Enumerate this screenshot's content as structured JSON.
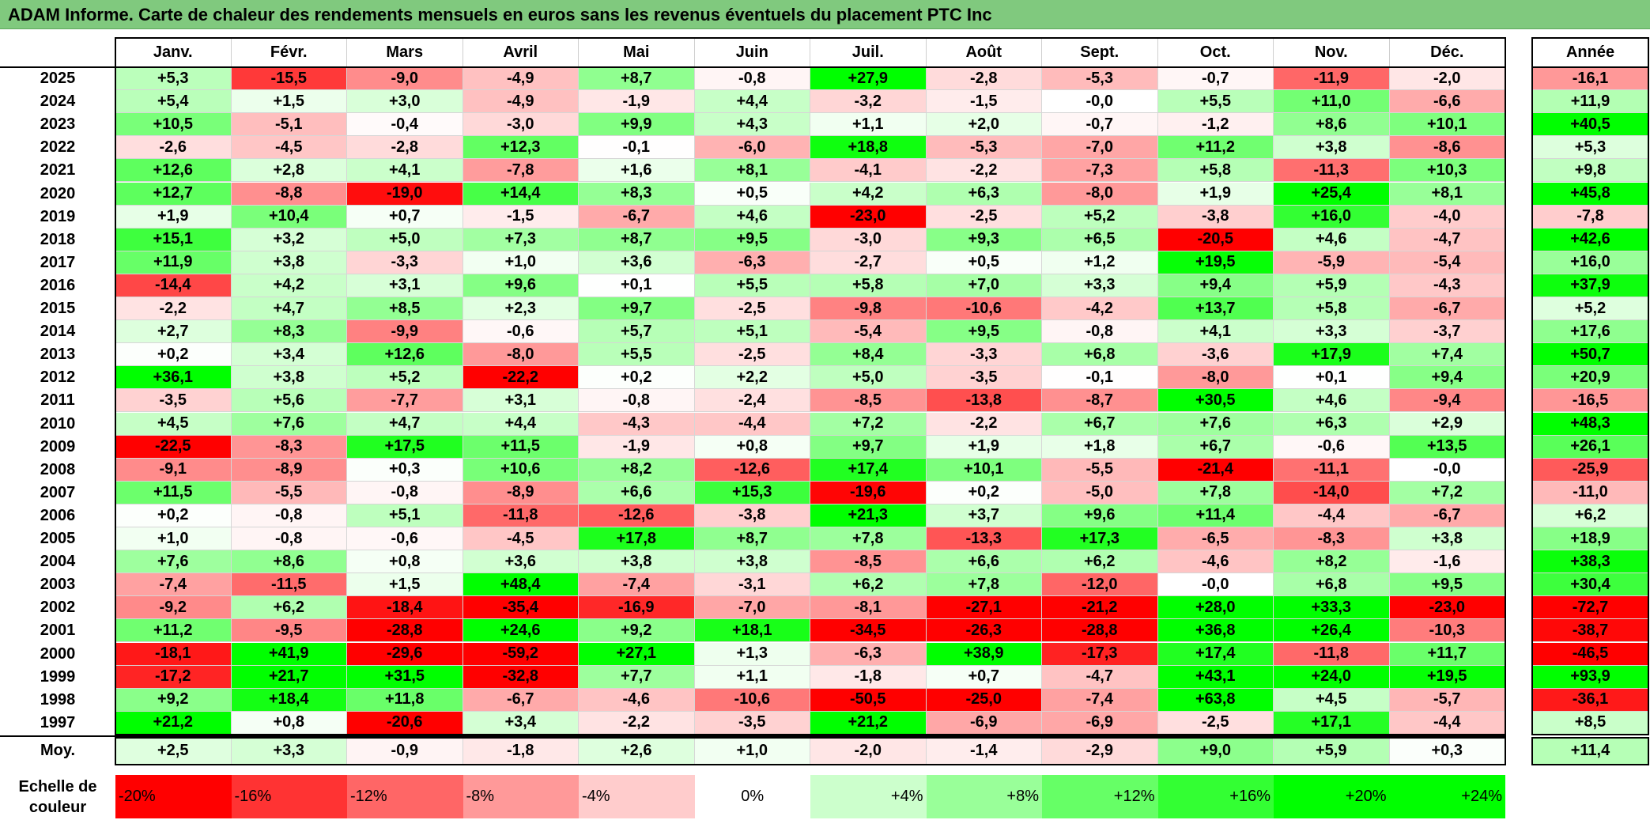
{
  "title": "ADAM Informe. Carte de chaleur des rendements mensuels en euros sans les revenus éventuels du placement PTC Inc",
  "colors": {
    "title_bar": "#80c97e",
    "negative_strong": "#ff0000",
    "neutral": "#ffffff",
    "positive_strong": "#00ff00"
  },
  "chart_data": {
    "type": "heatmap",
    "title": "ADAM Informe. Carte de chaleur des rendements mensuels en euros sans les revenus éventuels du placement PTC Inc",
    "columns": [
      "Janv.",
      "Févr.",
      "Mars",
      "Avril",
      "Mai",
      "Juin",
      "Juil.",
      "Août",
      "Sept.",
      "Oct.",
      "Nov.",
      "Déc."
    ],
    "year_column_label": "Année",
    "average_row_label": "Moy.",
    "rows": [
      {
        "year": "2025",
        "values": [
          "+5,3",
          "-15,5",
          "-9,0",
          "-4,9",
          "+8,7",
          "-0,8",
          "+27,9",
          "-2,8",
          "-5,3",
          "-0,7",
          "-11,9",
          "-2,0"
        ],
        "annual": "-16,1"
      },
      {
        "year": "2024",
        "values": [
          "+5,4",
          "+1,5",
          "+3,0",
          "-4,9",
          "-1,9",
          "+4,4",
          "-3,2",
          "-1,5",
          "-0,0",
          "+5,5",
          "+11,0",
          "-6,6"
        ],
        "annual": "+11,9"
      },
      {
        "year": "2023",
        "values": [
          "+10,5",
          "-5,1",
          "-0,4",
          "-3,0",
          "+9,9",
          "+4,3",
          "+1,1",
          "+2,0",
          "-0,7",
          "-1,2",
          "+8,6",
          "+10,1"
        ],
        "annual": "+40,5"
      },
      {
        "year": "2022",
        "values": [
          "-2,6",
          "-4,5",
          "-2,8",
          "+12,3",
          "-0,1",
          "-6,0",
          "+18,8",
          "-5,3",
          "-7,0",
          "+11,2",
          "+3,8",
          "-8,6"
        ],
        "annual": "+5,3"
      },
      {
        "year": "2021",
        "values": [
          "+12,6",
          "+2,8",
          "+4,1",
          "-7,8",
          "+1,6",
          "+8,1",
          "-4,1",
          "-2,2",
          "-7,3",
          "+5,8",
          "-11,3",
          "+10,3"
        ],
        "annual": "+9,8"
      },
      {
        "year": "2020",
        "values": [
          "+12,7",
          "-8,8",
          "-19,0",
          "+14,4",
          "+8,3",
          "+0,5",
          "+4,2",
          "+6,3",
          "-8,0",
          "+1,9",
          "+25,4",
          "+8,1"
        ],
        "annual": "+45,8"
      },
      {
        "year": "2019",
        "values": [
          "+1,9",
          "+10,4",
          "+0,7",
          "-1,5",
          "-6,7",
          "+4,6",
          "-23,0",
          "-2,5",
          "+5,2",
          "-3,8",
          "+16,0",
          "-4,0"
        ],
        "annual": "-7,8"
      },
      {
        "year": "2018",
        "values": [
          "+15,1",
          "+3,2",
          "+5,0",
          "+7,3",
          "+8,7",
          "+9,5",
          "-3,0",
          "+9,3",
          "+6,5",
          "-20,5",
          "+4,6",
          "-4,7"
        ],
        "annual": "+42,6"
      },
      {
        "year": "2017",
        "values": [
          "+11,9",
          "+3,8",
          "-3,3",
          "+1,0",
          "+3,6",
          "-6,3",
          "-2,7",
          "+0,5",
          "+1,2",
          "+19,5",
          "-5,9",
          "-5,4"
        ],
        "annual": "+16,0"
      },
      {
        "year": "2016",
        "values": [
          "-14,4",
          "+4,2",
          "+3,1",
          "+9,6",
          "+0,1",
          "+5,5",
          "+5,8",
          "+7,0",
          "+3,3",
          "+9,4",
          "+5,9",
          "-4,3"
        ],
        "annual": "+37,9"
      },
      {
        "year": "2015",
        "values": [
          "-2,2",
          "+4,7",
          "+8,5",
          "+2,3",
          "+9,7",
          "-2,5",
          "-9,8",
          "-10,6",
          "-4,2",
          "+13,7",
          "+5,8",
          "-6,7"
        ],
        "annual": "+5,2"
      },
      {
        "year": "2014",
        "values": [
          "+2,7",
          "+8,3",
          "-9,9",
          "-0,6",
          "+5,7",
          "+5,1",
          "-5,4",
          "+9,5",
          "-0,8",
          "+4,1",
          "+3,3",
          "-3,7"
        ],
        "annual": "+17,6"
      },
      {
        "year": "2013",
        "values": [
          "+0,2",
          "+3,4",
          "+12,6",
          "-8,0",
          "+5,5",
          "-2,5",
          "+8,4",
          "-3,3",
          "+6,8",
          "-3,6",
          "+17,9",
          "+7,4"
        ],
        "annual": "+50,7"
      },
      {
        "year": "2012",
        "values": [
          "+36,1",
          "+3,8",
          "+5,2",
          "-22,2",
          "+0,2",
          "+2,2",
          "+5,0",
          "-3,5",
          "-0,1",
          "-8,0",
          "+0,1",
          "+9,4"
        ],
        "annual": "+20,9"
      },
      {
        "year": "2011",
        "values": [
          "-3,5",
          "+5,6",
          "-7,7",
          "+3,1",
          "-0,8",
          "-2,4",
          "-8,5",
          "-13,8",
          "-8,7",
          "+30,5",
          "+4,6",
          "-9,4"
        ],
        "annual": "-16,5"
      },
      {
        "year": "2010",
        "values": [
          "+4,5",
          "+7,6",
          "+4,7",
          "+4,4",
          "-4,3",
          "-4,4",
          "+7,2",
          "-2,2",
          "+6,7",
          "+7,6",
          "+6,3",
          "+2,9"
        ],
        "annual": "+48,3"
      },
      {
        "year": "2009",
        "values": [
          "-22,5",
          "-8,3",
          "+17,5",
          "+11,5",
          "-1,9",
          "+0,8",
          "+9,7",
          "+1,9",
          "+1,8",
          "+6,7",
          "-0,6",
          "+13,5"
        ],
        "annual": "+26,1"
      },
      {
        "year": "2008",
        "values": [
          "-9,1",
          "-8,9",
          "+0,3",
          "+10,6",
          "+8,2",
          "-12,6",
          "+17,4",
          "+10,1",
          "-5,5",
          "-21,4",
          "-11,1",
          "-0,0"
        ],
        "annual": "-25,9"
      },
      {
        "year": "2007",
        "values": [
          "+11,5",
          "-5,5",
          "-0,8",
          "-8,9",
          "+6,6",
          "+15,3",
          "-19,6",
          "+0,2",
          "-5,0",
          "+7,8",
          "-14,0",
          "+7,2"
        ],
        "annual": "-11,0"
      },
      {
        "year": "2006",
        "values": [
          "+0,2",
          "-0,8",
          "+5,1",
          "-11,8",
          "-12,6",
          "-3,8",
          "+21,3",
          "+3,7",
          "+9,6",
          "+11,4",
          "-4,4",
          "-6,7"
        ],
        "annual": "+6,2"
      },
      {
        "year": "2005",
        "values": [
          "+1,0",
          "-0,8",
          "-0,6",
          "-4,5",
          "+17,8",
          "+8,7",
          "+7,8",
          "-13,3",
          "+17,3",
          "-6,5",
          "-8,3",
          "+3,8"
        ],
        "annual": "+18,9"
      },
      {
        "year": "2004",
        "values": [
          "+7,6",
          "+8,6",
          "+0,8",
          "+3,6",
          "+3,8",
          "+3,8",
          "-8,5",
          "+6,6",
          "+6,2",
          "-4,6",
          "+8,2",
          "-1,6"
        ],
        "annual": "+38,3"
      },
      {
        "year": "2003",
        "values": [
          "-7,4",
          "-11,5",
          "+1,5",
          "+48,4",
          "-7,4",
          "-3,1",
          "+6,2",
          "+7,8",
          "-12,0",
          "-0,0",
          "+6,8",
          "+9,5"
        ],
        "annual": "+30,4"
      },
      {
        "year": "2002",
        "values": [
          "-9,2",
          "+6,2",
          "-18,4",
          "-35,4",
          "-16,9",
          "-7,0",
          "-8,1",
          "-27,1",
          "-21,2",
          "+28,0",
          "+33,3",
          "-23,0"
        ],
        "annual": "-72,7"
      },
      {
        "year": "2001",
        "values": [
          "+11,2",
          "-9,5",
          "-28,8",
          "+24,6",
          "+9,2",
          "+18,1",
          "-34,5",
          "-26,3",
          "-28,8",
          "+36,8",
          "+26,4",
          "-10,3"
        ],
        "annual": "-38,7"
      },
      {
        "year": "2000",
        "values": [
          "-18,1",
          "+41,9",
          "-29,6",
          "-59,2",
          "+27,1",
          "+1,3",
          "-6,3",
          "+38,9",
          "-17,3",
          "+17,4",
          "-11,8",
          "+11,7"
        ],
        "annual": "-46,5"
      },
      {
        "year": "1999",
        "values": [
          "-17,2",
          "+21,7",
          "+31,5",
          "-32,8",
          "+7,7",
          "+1,1",
          "-1,8",
          "+0,7",
          "-4,7",
          "+43,1",
          "+24,0",
          "+19,5"
        ],
        "annual": "+93,9"
      },
      {
        "year": "1998",
        "values": [
          "+9,2",
          "+18,4",
          "+11,8",
          "-6,7",
          "-4,6",
          "-10,6",
          "-50,5",
          "-25,0",
          "-7,4",
          "+63,8",
          "+4,5",
          "-5,7"
        ],
        "annual": "-36,1"
      },
      {
        "year": "1997",
        "values": [
          "+21,2",
          "+0,8",
          "-20,6",
          "+3,4",
          "-2,2",
          "-3,5",
          "+21,2",
          "-6,9",
          "-6,9",
          "-2,5",
          "+17,1",
          "-4,4"
        ],
        "annual": "+8,5"
      }
    ],
    "average": {
      "values": [
        "+2,5",
        "+3,3",
        "-0,9",
        "-1,8",
        "+2,6",
        "+1,0",
        "-2,0",
        "-1,4",
        "-2,9",
        "+9,0",
        "+5,9",
        "+0,3"
      ],
      "annual": "+11,4"
    },
    "color_scale": {
      "label_line1": "Echelle de",
      "label_line2": "couleur",
      "stops": [
        {
          "label": "-20%",
          "value": -20
        },
        {
          "label": "-16%",
          "value": -16
        },
        {
          "label": "-12%",
          "value": -12
        },
        {
          "label": "-8%",
          "value": -8
        },
        {
          "label": "-4%",
          "value": -4
        },
        {
          "label": "0%",
          "value": 0
        },
        {
          "label": "+4%",
          "value": 4
        },
        {
          "label": "+8%",
          "value": 8
        },
        {
          "label": "+12%",
          "value": 12
        },
        {
          "label": "+16%",
          "value": 16
        },
        {
          "label": "+20%",
          "value": 20
        },
        {
          "label": "+24%",
          "value": 24
        }
      ]
    }
  }
}
